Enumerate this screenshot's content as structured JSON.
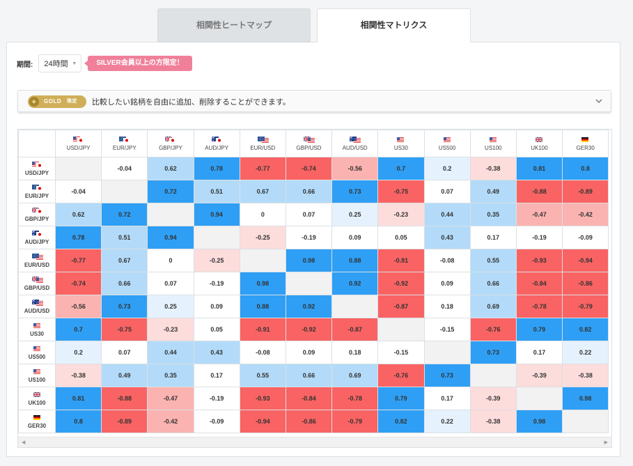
{
  "tabs": [
    {
      "label": "相関性ヒートマップ",
      "active": false
    },
    {
      "label": "相関性マトリクス",
      "active": true
    }
  ],
  "period": {
    "label": "期間:",
    "value": "24時間"
  },
  "silver_badge": "SILVER会員以上の方限定！",
  "gold_bar": {
    "badge": "GOLD",
    "badge_sub": "限定",
    "text": "比較したい銘柄を自由に追加、削除することができます。"
  },
  "colors": {
    "strong_pos": "#2e9ff5",
    "mid_pos": "#b3dbf9",
    "weak_pos": "#e5f2fd",
    "neutral": "#ffffff",
    "weak_neg": "#fddcdc",
    "mid_neg": "#fbb3b1",
    "strong_neg": "#f96363",
    "diag": "#f2f2f2"
  },
  "matrix": {
    "symbols": [
      {
        "label": "USD/JPY",
        "flags": [
          "us",
          "jp"
        ]
      },
      {
        "label": "EUR/JPY",
        "flags": [
          "eu",
          "jp"
        ]
      },
      {
        "label": "GBP/JPY",
        "flags": [
          "gb",
          "jp"
        ]
      },
      {
        "label": "AUD/JPY",
        "flags": [
          "au",
          "jp"
        ]
      },
      {
        "label": "EUR/USD",
        "flags": [
          "eu",
          "us"
        ]
      },
      {
        "label": "GBP/USD",
        "flags": [
          "gb",
          "us"
        ]
      },
      {
        "label": "AUD/USD",
        "flags": [
          "au",
          "us"
        ]
      },
      {
        "label": "US30",
        "flags": [
          "us"
        ]
      },
      {
        "label": "US500",
        "flags": [
          "us"
        ]
      },
      {
        "label": "US100",
        "flags": [
          "us"
        ]
      },
      {
        "label": "UK100",
        "flags": [
          "gb"
        ]
      },
      {
        "label": "GER30",
        "flags": [
          "de"
        ]
      }
    ],
    "rows": [
      [
        null,
        "-0.04",
        "0.62",
        "0.78",
        "-0.77",
        "-0.74",
        "-0.56",
        "0.7",
        "0.2",
        "-0.38",
        "0.81",
        "0.8"
      ],
      [
        "-0.04",
        null,
        "0.72",
        "0.51",
        "0.67",
        "0.66",
        "0.73",
        "-0.75",
        "0.07",
        "0.49",
        "-0.88",
        "-0.89"
      ],
      [
        "0.62",
        "0.72",
        null,
        "0.94",
        "0",
        "0.07",
        "0.25",
        "-0.23",
        "0.44",
        "0.35",
        "-0.47",
        "-0.42"
      ],
      [
        "0.78",
        "0.51",
        "0.94",
        null,
        "-0.25",
        "-0.19",
        "0.09",
        "0.05",
        "0.43",
        "0.17",
        "-0.19",
        "-0.09"
      ],
      [
        "-0.77",
        "0.67",
        "0",
        "-0.25",
        null,
        "0.98",
        "0.88",
        "-0.91",
        "-0.08",
        "0.55",
        "-0.93",
        "-0.94"
      ],
      [
        "-0.74",
        "0.66",
        "0.07",
        "-0.19",
        "0.98",
        null,
        "0.92",
        "-0.92",
        "0.09",
        "0.66",
        "-0.84",
        "-0.86"
      ],
      [
        "-0.56",
        "0.73",
        "0.25",
        "0.09",
        "0.88",
        "0.92",
        null,
        "-0.87",
        "0.18",
        "0.69",
        "-0.78",
        "-0.79"
      ],
      [
        "0.7",
        "-0.75",
        "-0.23",
        "0.05",
        "-0.91",
        "-0.92",
        "-0.87",
        null,
        "-0.15",
        "-0.76",
        "0.79",
        "0.82"
      ],
      [
        "0.2",
        "0.07",
        "0.44",
        "0.43",
        "-0.08",
        "0.09",
        "0.18",
        "-0.15",
        null,
        "0.73",
        "0.17",
        "0.22"
      ],
      [
        "-0.38",
        "0.49",
        "0.35",
        "0.17",
        "0.55",
        "0.66",
        "0.69",
        "-0.76",
        "0.73",
        null,
        "-0.39",
        "-0.38"
      ],
      [
        "0.81",
        "-0.88",
        "-0.47",
        "-0.19",
        "-0.93",
        "-0.84",
        "-0.78",
        "0.79",
        "0.17",
        "-0.39",
        null,
        "0.98"
      ],
      [
        "0.8",
        "-0.89",
        "-0.42",
        "-0.09",
        "-0.94",
        "-0.86",
        "-0.79",
        "0.82",
        "0.22",
        "-0.38",
        "0.98",
        null
      ]
    ]
  }
}
